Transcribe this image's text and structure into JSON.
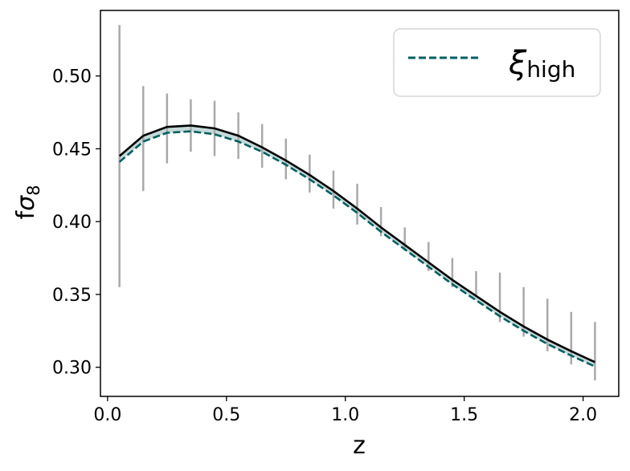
{
  "chart_data": {
    "type": "line",
    "xlabel": "z",
    "ylabel_main": "f",
    "ylabel_sym": "σ",
    "ylabel_sub": "8",
    "xlim": [
      -0.03,
      2.15
    ],
    "ylim": [
      0.28,
      0.545
    ],
    "xticks": [
      0.0,
      0.5,
      1.0,
      1.5,
      2.0
    ],
    "xtick_labels": [
      "0.0",
      "0.5",
      "1.0",
      "1.5",
      "2.0"
    ],
    "yticks": [
      0.3,
      0.35,
      0.4,
      0.45,
      0.5
    ],
    "ytick_labels": [
      "0.30",
      "0.35",
      "0.40",
      "0.45",
      "0.50"
    ],
    "legend_position": "top-right",
    "legend": {
      "symbol": "ξ",
      "subscript": "high"
    },
    "x": [
      0.05,
      0.15,
      0.25,
      0.35,
      0.45,
      0.55,
      0.65,
      0.75,
      0.85,
      0.95,
      1.05,
      1.15,
      1.25,
      1.35,
      1.45,
      1.55,
      1.65,
      1.75,
      1.85,
      1.95,
      2.05
    ],
    "series": [
      {
        "style": "solid",
        "color": "#000000",
        "values": [
          0.445,
          0.459,
          0.465,
          0.466,
          0.464,
          0.459,
          0.451,
          0.442,
          0.432,
          0.421,
          0.409,
          0.396,
          0.384,
          0.372,
          0.36,
          0.349,
          0.338,
          0.328,
          0.319,
          0.311,
          0.3035
        ]
      },
      {
        "name": "ξ_high",
        "style": "dashed",
        "color": "#005f5f",
        "values": [
          0.441,
          0.455,
          0.461,
          0.462,
          0.46,
          0.455,
          0.448,
          0.439,
          0.429,
          0.418,
          0.406,
          0.393,
          0.381,
          0.369,
          0.357,
          0.346,
          0.335,
          0.325,
          0.316,
          0.308,
          0.3005
        ]
      }
    ],
    "error_bars": {
      "color": "#a9a9a9",
      "center": [
        0.445,
        0.457,
        0.464,
        0.466,
        0.464,
        0.459,
        0.452,
        0.443,
        0.433,
        0.422,
        0.412,
        0.4,
        0.388,
        0.376,
        0.365,
        0.357,
        0.348,
        0.338,
        0.329,
        0.32,
        0.311
      ],
      "err": [
        0.09,
        0.036,
        0.024,
        0.018,
        0.019,
        0.016,
        0.015,
        0.014,
        0.013,
        0.013,
        0.014,
        0.01,
        0.008,
        0.01,
        0.01,
        0.009,
        0.017,
        0.017,
        0.018,
        0.018,
        0.02
      ]
    },
    "band_color": "#9fbfbf"
  }
}
